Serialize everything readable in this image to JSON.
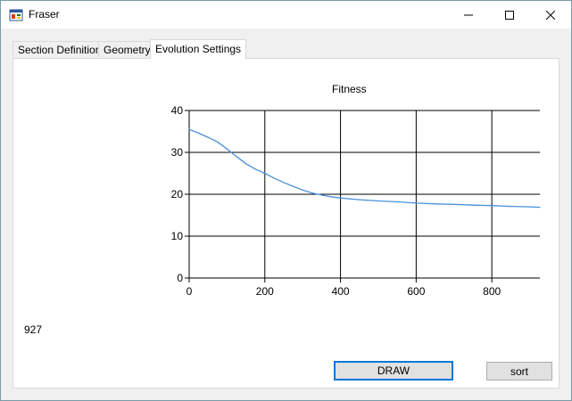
{
  "window": {
    "title": "Fraser",
    "icon": "app-window-icon",
    "controls": [
      "minimize-icon",
      "maximize-icon",
      "close-icon"
    ]
  },
  "tabs": [
    {
      "label": "Section Definition",
      "active": false
    },
    {
      "label": "Geometry",
      "active": false
    },
    {
      "label": "Evolution Settings",
      "active": true
    }
  ],
  "panel": {
    "count_value": "927",
    "draw_button": "DRAW",
    "sort_button": "sort"
  },
  "chart_data": {
    "type": "line",
    "title": "Fitness",
    "xlabel": "",
    "ylabel": "",
    "xlim": [
      0,
      927
    ],
    "ylim": [
      0,
      40
    ],
    "x_ticks": [
      "0",
      "200",
      "400",
      "600",
      "800"
    ],
    "y_ticks": [
      "0",
      "10",
      "20",
      "30",
      "40"
    ],
    "grid": true,
    "legend": "none",
    "series": [
      {
        "color": "#4a90d9",
        "x": [
          0,
          25,
          50,
          75,
          100,
          125,
          150,
          175,
          200,
          225,
          250,
          275,
          300,
          325,
          350,
          375,
          400,
          450,
          500,
          550,
          600,
          650,
          700,
          750,
          800,
          850,
          900,
          927
        ],
        "y": [
          35.5,
          34.6,
          33.6,
          32.5,
          30.8,
          29.0,
          27.3,
          26.0,
          25.0,
          23.8,
          22.8,
          21.9,
          21.0,
          20.3,
          19.8,
          19.4,
          19.1,
          18.7,
          18.4,
          18.2,
          17.9,
          17.7,
          17.6,
          17.4,
          17.3,
          17.1,
          17.0,
          16.9
        ]
      }
    ]
  }
}
